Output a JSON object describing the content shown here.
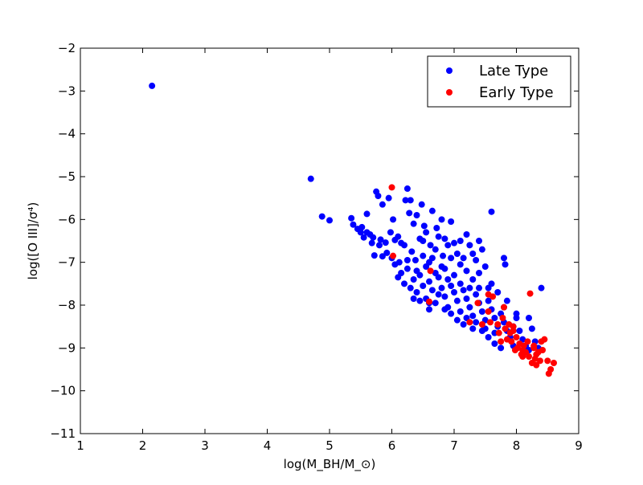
{
  "chart_data": {
    "type": "scatter",
    "title": "",
    "xlabel": "log(M_BH/M_⊙)",
    "ylabel": "log([O III]/σ⁴)",
    "xlim": [
      1,
      9
    ],
    "ylim": [
      -11,
      -2
    ],
    "xticks": [
      "1",
      "2",
      "3",
      "4",
      "5",
      "6",
      "7",
      "8",
      "9"
    ],
    "yticks": [
      "−2",
      "−3",
      "−4",
      "−5",
      "−6",
      "−7",
      "−8",
      "−9",
      "−10",
      "−11"
    ],
    "grid": false,
    "legend_position": "top-right",
    "series": [
      {
        "name": "Late Type",
        "color": "#0000ff",
        "points": [
          [
            2.15,
            -2.88
          ],
          [
            4.7,
            -5.05
          ],
          [
            4.88,
            -5.93
          ],
          [
            5.0,
            -6.02
          ],
          [
            5.35,
            -5.97
          ],
          [
            5.38,
            -6.12
          ],
          [
            5.45,
            -6.22
          ],
          [
            5.5,
            -6.3
          ],
          [
            5.55,
            -6.42
          ],
          [
            5.6,
            -6.3
          ],
          [
            5.65,
            -6.35
          ],
          [
            5.7,
            -6.42
          ],
          [
            5.52,
            -6.18
          ],
          [
            5.6,
            -5.87
          ],
          [
            5.68,
            -6.55
          ],
          [
            5.72,
            -6.84
          ],
          [
            5.75,
            -5.35
          ],
          [
            5.78,
            -5.45
          ],
          [
            5.8,
            -6.6
          ],
          [
            5.82,
            -6.47
          ],
          [
            5.85,
            -6.86
          ],
          [
            5.85,
            -5.65
          ],
          [
            5.9,
            -6.54
          ],
          [
            5.92,
            -6.78
          ],
          [
            5.95,
            -5.5
          ],
          [
            5.98,
            -6.3
          ],
          [
            6.0,
            -6.9
          ],
          [
            6.02,
            -6.0
          ],
          [
            6.05,
            -6.48
          ],
          [
            6.1,
            -6.4
          ],
          [
            6.12,
            -7.0
          ],
          [
            6.15,
            -6.55
          ],
          [
            6.2,
            -6.6
          ],
          [
            6.22,
            -5.55
          ],
          [
            6.25,
            -5.28
          ],
          [
            6.28,
            -5.85
          ],
          [
            6.3,
            -5.55
          ],
          [
            6.32,
            -6.75
          ],
          [
            6.35,
            -6.1
          ],
          [
            6.38,
            -6.95
          ],
          [
            6.4,
            -5.9
          ],
          [
            6.45,
            -6.45
          ],
          [
            6.48,
            -5.65
          ],
          [
            6.5,
            -6.85
          ],
          [
            6.52,
            -6.15
          ],
          [
            6.55,
            -6.3
          ],
          [
            6.6,
            -7.0
          ],
          [
            6.62,
            -6.6
          ],
          [
            6.65,
            -5.8
          ],
          [
            6.7,
            -6.7
          ],
          [
            6.72,
            -6.2
          ],
          [
            6.75,
            -6.4
          ],
          [
            6.8,
            -6.0
          ],
          [
            6.82,
            -6.85
          ],
          [
            6.85,
            -6.45
          ],
          [
            6.9,
            -6.6
          ],
          [
            6.95,
            -6.05
          ],
          [
            7.0,
            -6.55
          ],
          [
            7.05,
            -6.8
          ],
          [
            7.1,
            -6.5
          ],
          [
            7.15,
            -6.9
          ],
          [
            7.2,
            -6.35
          ],
          [
            7.25,
            -6.6
          ],
          [
            7.3,
            -6.8
          ],
          [
            7.35,
            -6.95
          ],
          [
            7.4,
            -6.5
          ],
          [
            7.45,
            -6.7
          ],
          [
            7.6,
            -5.82
          ],
          [
            7.8,
            -6.9
          ],
          [
            7.82,
            -7.05
          ],
          [
            6.05,
            -7.05
          ],
          [
            6.1,
            -7.35
          ],
          [
            6.15,
            -7.25
          ],
          [
            6.2,
            -7.5
          ],
          [
            6.25,
            -7.15
          ],
          [
            6.3,
            -7.6
          ],
          [
            6.35,
            -7.4
          ],
          [
            6.4,
            -7.7
          ],
          [
            6.45,
            -7.3
          ],
          [
            6.5,
            -7.55
          ],
          [
            6.55,
            -7.85
          ],
          [
            6.6,
            -7.45
          ],
          [
            6.65,
            -7.65
          ],
          [
            6.7,
            -7.95
          ],
          [
            6.75,
            -7.35
          ],
          [
            6.8,
            -7.6
          ],
          [
            6.85,
            -7.8
          ],
          [
            6.9,
            -8.05
          ],
          [
            6.95,
            -7.55
          ],
          [
            7.0,
            -7.7
          ],
          [
            7.05,
            -7.9
          ],
          [
            7.1,
            -8.15
          ],
          [
            7.15,
            -7.65
          ],
          [
            7.2,
            -7.85
          ],
          [
            7.25,
            -8.05
          ],
          [
            7.3,
            -8.25
          ],
          [
            7.35,
            -7.75
          ],
          [
            7.4,
            -7.95
          ],
          [
            7.45,
            -8.15
          ],
          [
            7.5,
            -8.35
          ],
          [
            7.55,
            -7.9
          ],
          [
            7.6,
            -8.1
          ],
          [
            7.65,
            -8.3
          ],
          [
            7.7,
            -8.5
          ],
          [
            7.75,
            -8.2
          ],
          [
            7.8,
            -8.4
          ],
          [
            7.85,
            -8.6
          ],
          [
            7.9,
            -8.75
          ],
          [
            7.95,
            -8.5
          ],
          [
            8.0,
            -8.3
          ],
          [
            8.05,
            -8.6
          ],
          [
            8.1,
            -8.8
          ],
          [
            8.15,
            -8.95
          ],
          [
            8.2,
            -9.05
          ],
          [
            8.25,
            -8.55
          ],
          [
            8.3,
            -8.85
          ],
          [
            8.35,
            -9.0
          ],
          [
            8.4,
            -7.6
          ],
          [
            8.2,
            -8.3
          ],
          [
            8.0,
            -8.2
          ],
          [
            7.8,
            -8.05
          ],
          [
            7.6,
            -7.5
          ],
          [
            7.5,
            -7.1
          ],
          [
            7.4,
            -7.25
          ],
          [
            6.4,
            -7.2
          ],
          [
            6.55,
            -7.1
          ],
          [
            6.7,
            -7.25
          ],
          [
            6.85,
            -7.15
          ],
          [
            7.0,
            -7.3
          ],
          [
            7.1,
            -7.05
          ],
          [
            7.2,
            -7.2
          ],
          [
            7.3,
            -7.4
          ],
          [
            6.9,
            -7.4
          ],
          [
            6.75,
            -7.75
          ],
          [
            6.6,
            -7.95
          ],
          [
            6.95,
            -8.2
          ],
          [
            7.05,
            -8.35
          ],
          [
            7.2,
            -8.3
          ],
          [
            7.35,
            -8.4
          ],
          [
            7.45,
            -8.6
          ],
          [
            7.55,
            -8.75
          ],
          [
            7.65,
            -8.9
          ],
          [
            7.75,
            -9.0
          ],
          [
            7.95,
            -8.95
          ],
          [
            6.25,
            -6.95
          ],
          [
            6.5,
            -6.5
          ],
          [
            6.65,
            -6.9
          ],
          [
            6.8,
            -7.1
          ],
          [
            6.95,
            -6.9
          ],
          [
            7.1,
            -7.5
          ],
          [
            7.25,
            -7.6
          ],
          [
            7.4,
            -7.6
          ],
          [
            7.55,
            -7.6
          ],
          [
            7.7,
            -7.7
          ],
          [
            7.85,
            -7.9
          ],
          [
            6.45,
            -7.9
          ],
          [
            6.35,
            -7.85
          ],
          [
            6.6,
            -8.1
          ],
          [
            6.85,
            -8.1
          ],
          [
            7.15,
            -8.45
          ],
          [
            7.3,
            -8.55
          ],
          [
            7.5,
            -8.55
          ],
          [
            7.65,
            -8.65
          ]
        ]
      },
      {
        "name": "Early Type",
        "color": "#ff0000",
        "points": [
          [
            6.0,
            -5.25
          ],
          [
            6.02,
            -6.85
          ],
          [
            6.62,
            -7.2
          ],
          [
            6.6,
            -7.92
          ],
          [
            7.25,
            -8.4
          ],
          [
            7.38,
            -7.95
          ],
          [
            7.45,
            -8.45
          ],
          [
            7.55,
            -7.75
          ],
          [
            7.55,
            -8.15
          ],
          [
            7.58,
            -8.4
          ],
          [
            7.62,
            -7.8
          ],
          [
            7.7,
            -8.45
          ],
          [
            7.72,
            -8.65
          ],
          [
            7.75,
            -8.85
          ],
          [
            7.78,
            -8.3
          ],
          [
            7.8,
            -8.05
          ],
          [
            7.82,
            -8.55
          ],
          [
            7.85,
            -8.8
          ],
          [
            7.88,
            -8.45
          ],
          [
            7.9,
            -8.65
          ],
          [
            7.92,
            -8.85
          ],
          [
            7.95,
            -8.5
          ],
          [
            7.98,
            -9.05
          ],
          [
            8.0,
            -8.75
          ],
          [
            8.02,
            -9.0
          ],
          [
            8.05,
            -8.9
          ],
          [
            8.08,
            -9.15
          ],
          [
            8.1,
            -9.05
          ],
          [
            8.12,
            -8.95
          ],
          [
            8.15,
            -9.1
          ],
          [
            8.18,
            -8.85
          ],
          [
            8.2,
            -9.2
          ],
          [
            8.22,
            -7.73
          ],
          [
            8.25,
            -9.35
          ],
          [
            8.28,
            -9.0
          ],
          [
            8.3,
            -9.25
          ],
          [
            8.32,
            -9.4
          ],
          [
            8.35,
            -9.1
          ],
          [
            8.38,
            -9.3
          ],
          [
            8.4,
            -8.85
          ],
          [
            8.42,
            -9.05
          ],
          [
            8.45,
            -8.8
          ],
          [
            8.5,
            -9.3
          ],
          [
            8.52,
            -9.6
          ],
          [
            8.55,
            -9.5
          ],
          [
            8.6,
            -9.35
          ],
          [
            8.32,
            -9.15
          ],
          [
            8.1,
            -9.2
          ],
          [
            7.95,
            -8.6
          ],
          [
            8.28,
            -8.95
          ]
        ]
      }
    ]
  }
}
